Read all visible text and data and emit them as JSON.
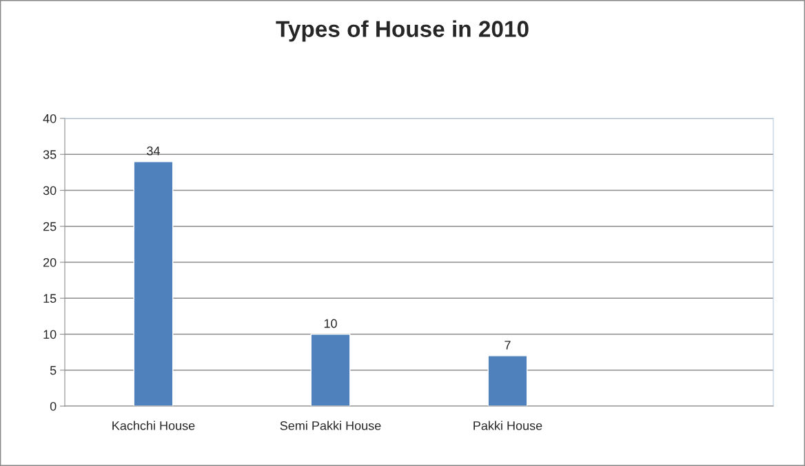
{
  "chart_data": {
    "type": "bar",
    "title": "Types of House in 2010",
    "categories": [
      "Kachchi House",
      "Semi Pakki House",
      "Pakki House",
      null
    ],
    "values": [
      34,
      10,
      7,
      null
    ],
    "color": "#4f81bd",
    "ylim": [
      0,
      40
    ],
    "yticks": [
      0,
      5,
      10,
      15,
      20,
      25,
      30,
      35,
      40
    ],
    "grid": "y",
    "data_labels": true
  }
}
